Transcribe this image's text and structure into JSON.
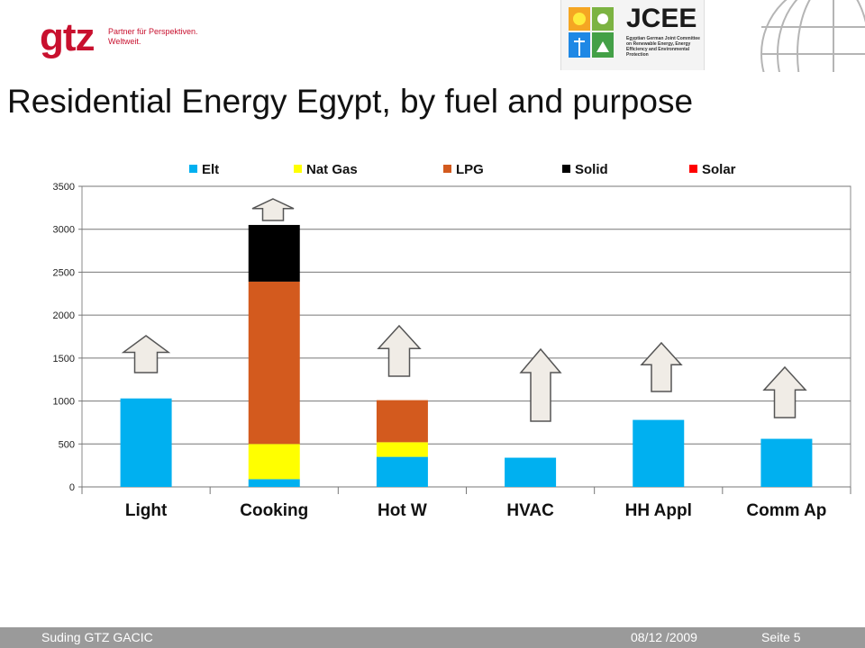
{
  "header": {
    "gtz_logo": "gtz",
    "gtz_tagline_1": "Partner für Perspektiven.",
    "gtz_tagline_2": "Weltweit.",
    "jcee_logo": "JCEE",
    "jcee_subtitle": "Egyptian German Joint Committee on Renewable Energy, Energy Efficiency and Environmental Protection"
  },
  "slide": {
    "title": "Residential Energy Egypt, by fuel and purpose"
  },
  "footer": {
    "author": "Suding GTZ  GACIC",
    "date": "08/12 /2009",
    "page": "Seite 5"
  },
  "colors": {
    "Elt": "#00b0f0",
    "Nat Gas": "#ffff00",
    "LPG": "#d35a1e",
    "Solid": "#000000",
    "Solar": "#ff0000",
    "arrow_fill": "#f0ece6",
    "footer_bg": "#9a9a9a"
  },
  "chart_data": {
    "type": "bar",
    "stacked": true,
    "categories": [
      "Light",
      "Cooking",
      "Hot W",
      "HVAC",
      "HH Appl",
      "Comm Ap"
    ],
    "series": [
      {
        "name": "Elt",
        "values": [
          1030,
          90,
          350,
          340,
          780,
          560
        ]
      },
      {
        "name": "Nat Gas",
        "values": [
          0,
          410,
          170,
          0,
          0,
          0
        ]
      },
      {
        "name": "LPG",
        "values": [
          0,
          1890,
          490,
          0,
          0,
          0
        ]
      },
      {
        "name": "Solid",
        "values": [
          0,
          660,
          0,
          0,
          0,
          0
        ]
      },
      {
        "name": "Solar",
        "values": [
          0,
          0,
          0,
          0,
          0,
          0
        ]
      }
    ],
    "ylim": [
      0,
      3500
    ],
    "yticks": [
      "0",
      "500",
      "1000",
      "1500",
      "2000",
      "2500",
      "3000",
      "3500"
    ],
    "grid": true,
    "legend_position": "top",
    "growth_arrows": [
      "up",
      "up",
      "up",
      "up",
      "up",
      "up"
    ]
  }
}
